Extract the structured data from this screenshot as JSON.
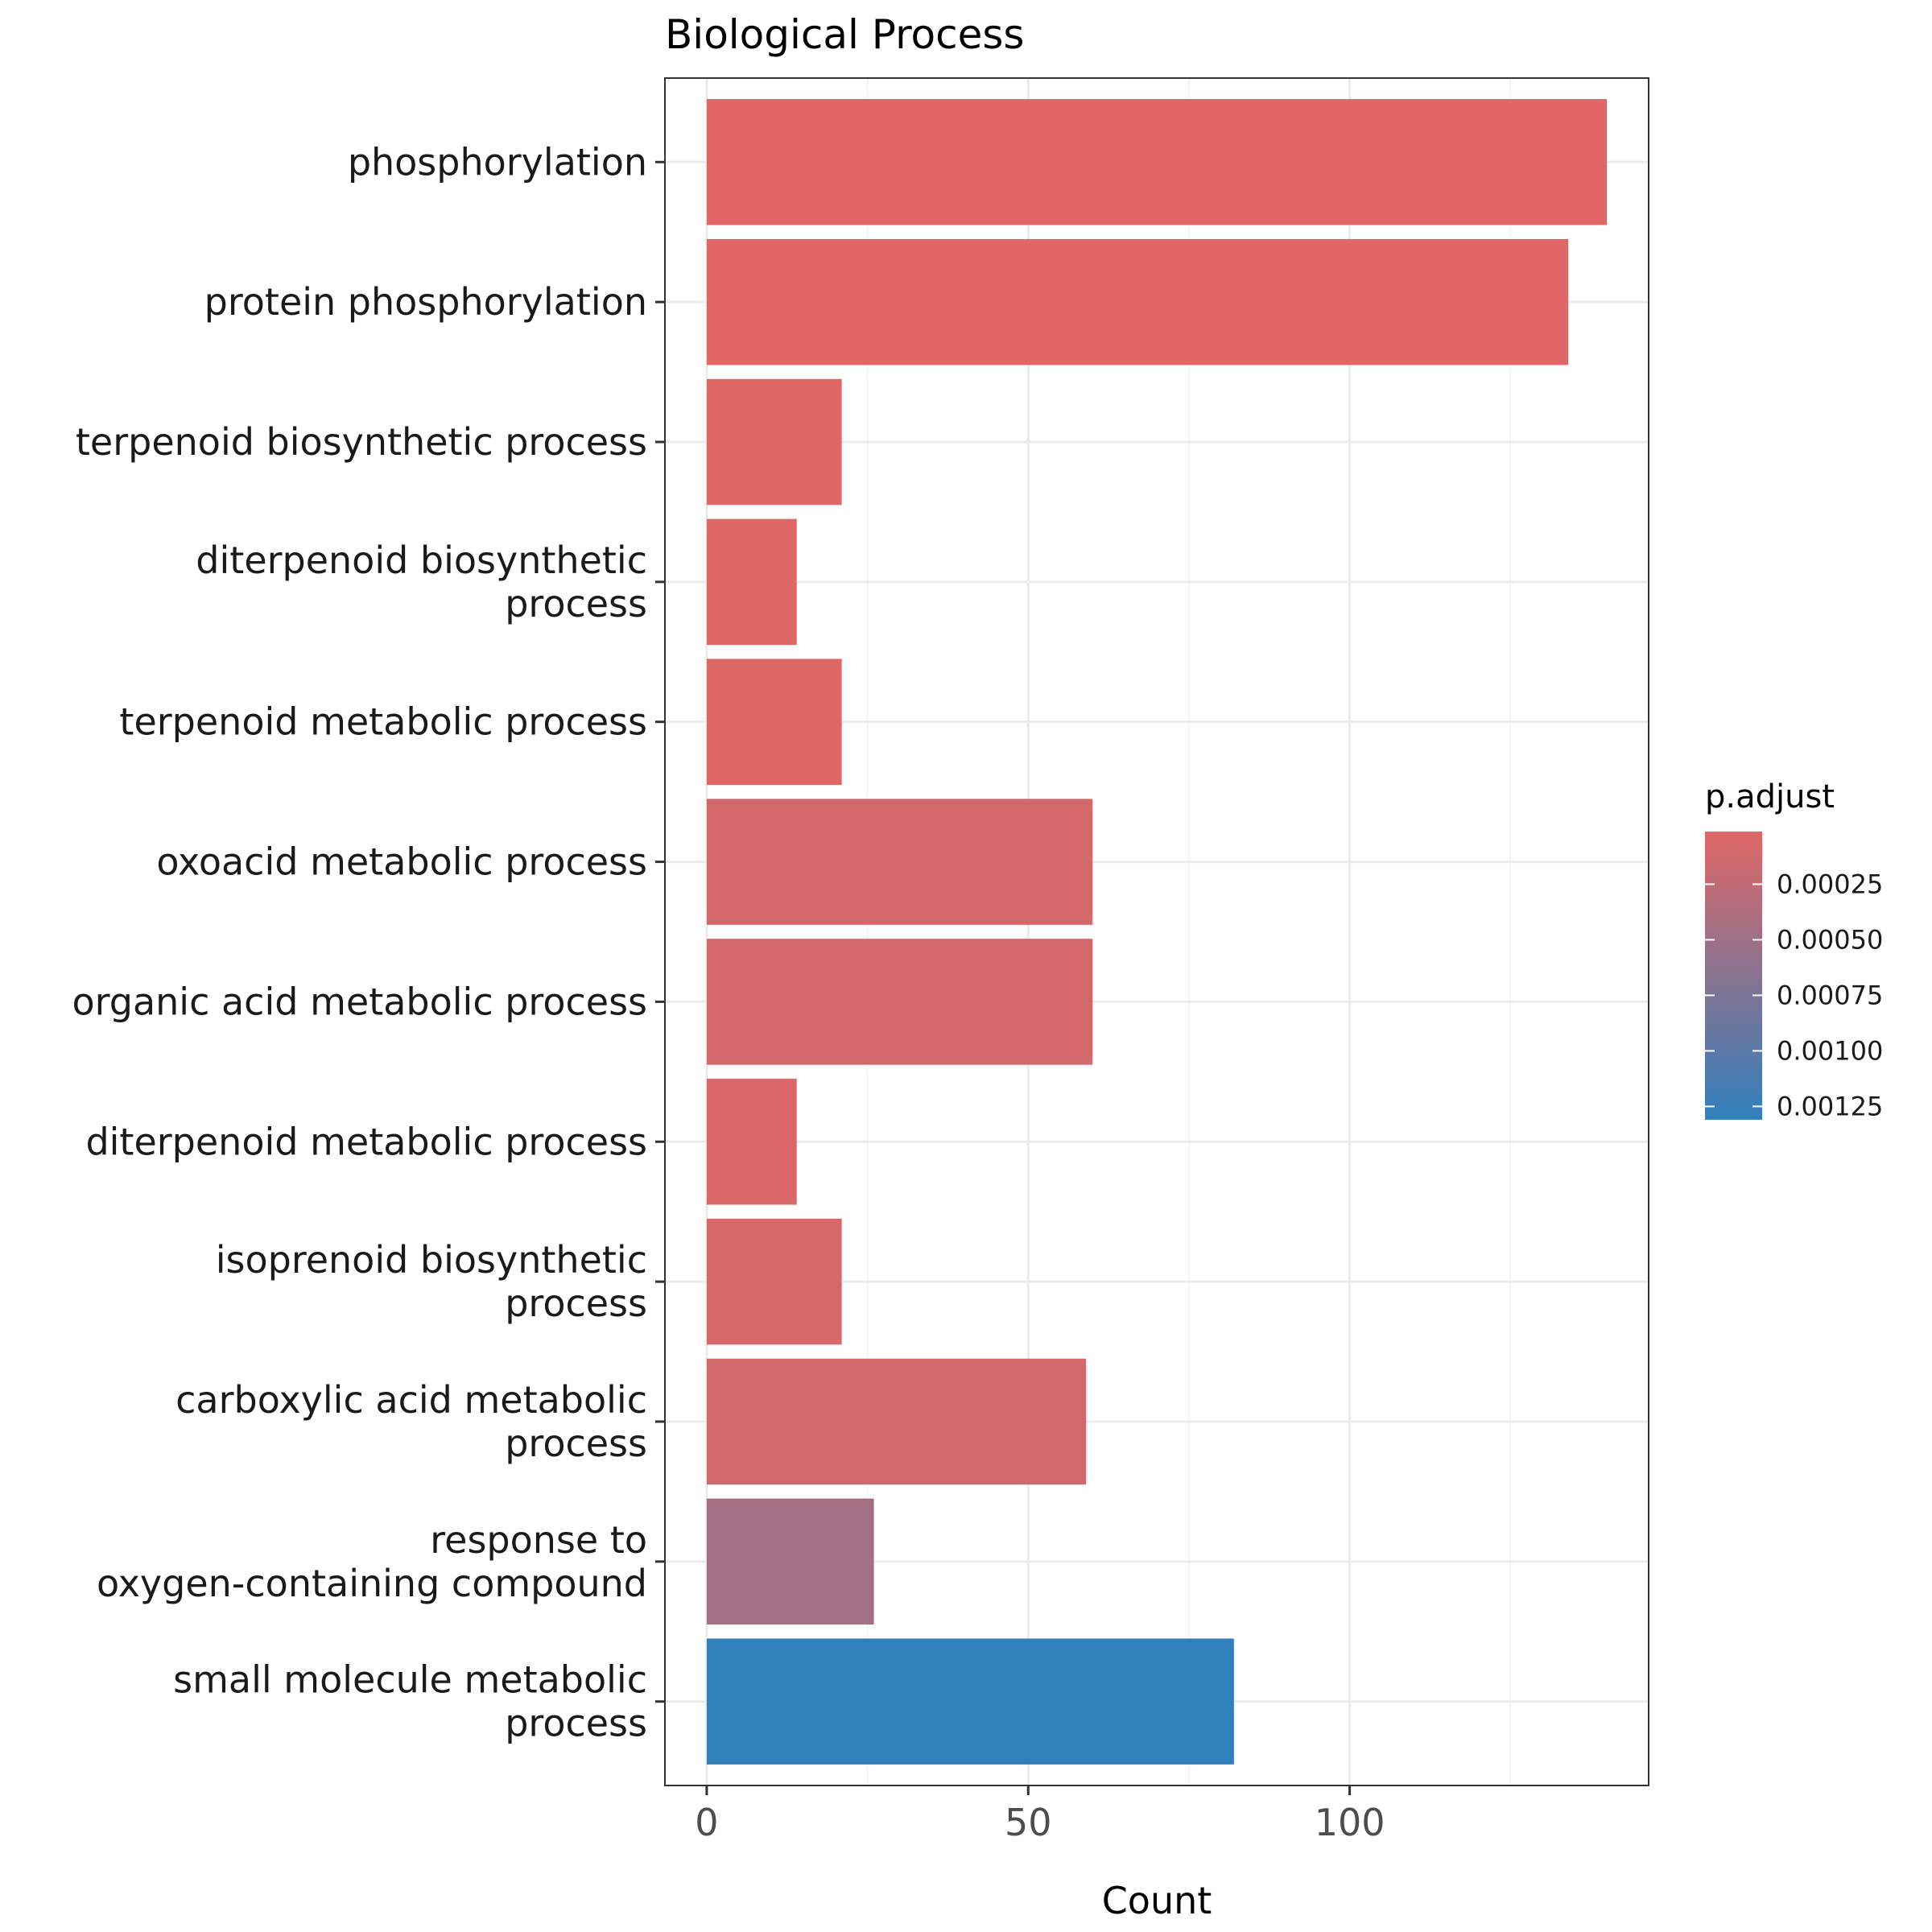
{
  "chart_data": {
    "type": "bar",
    "orientation": "horizontal",
    "title": "Biological Process",
    "xlabel": "Count",
    "ylabel": "",
    "xlim": [
      -6.5,
      146.5
    ],
    "xticks": [
      0,
      50,
      100
    ],
    "grid": true,
    "legend_placement": "right",
    "categories": [
      [
        "phosphorylation"
      ],
      [
        "protein phosphorylation"
      ],
      [
        "terpenoid biosynthetic process"
      ],
      [
        "diterpenoid biosynthetic",
        "process"
      ],
      [
        "terpenoid metabolic process"
      ],
      [
        "oxoacid metabolic process"
      ],
      [
        "organic acid metabolic process"
      ],
      [
        "diterpenoid metabolic process"
      ],
      [
        "isoprenoid biosynthetic",
        "process"
      ],
      [
        "carboxylic acid metabolic",
        "process"
      ],
      [
        "response to",
        "oxygen-containing compound"
      ],
      [
        "small molecule metabolic",
        "process"
      ]
    ],
    "values": [
      140,
      134,
      21,
      14,
      21,
      60,
      60,
      14,
      21,
      59,
      26,
      82
    ],
    "p_adjust": [
      1.3e-05,
      1.3e-05,
      2e-05,
      2e-05,
      2e-05,
      0.0001,
      0.0001,
      6e-05,
      8e-05,
      0.00012,
      0.00046,
      0.00131
    ],
    "legend": {
      "title": "p.adjust",
      "ticks": [
        0.00025,
        0.0005,
        0.00075,
        0.001,
        0.00125
      ],
      "tick_labels": [
        "0.00025",
        "0.00050",
        "0.00075",
        "0.00100",
        "0.00125"
      ],
      "range": [
        1.3e-05,
        0.00131
      ],
      "color_low": "#E06766",
      "color_high": "#317FBB"
    }
  }
}
